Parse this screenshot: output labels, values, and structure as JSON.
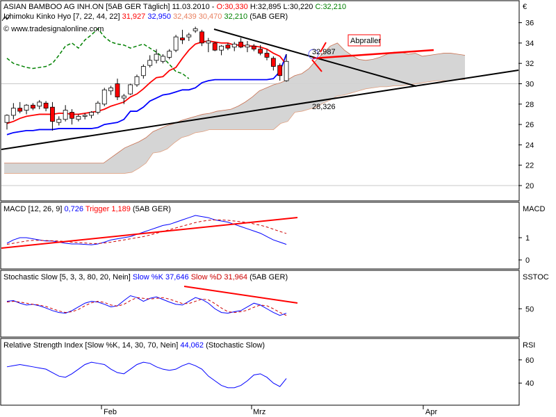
{
  "header": {
    "title_line": "ASIAN BAMBOO AG  INH.ON [5AB GER  Täglich] 11.03.2010",
    "open": "O:30,330",
    "high": "H:32,895",
    "low": "L:30,220",
    "close": "C:32,210",
    "ichimoku_label": "Ichimoku Kinko Hyo [7, 22, 44, 22]",
    "ichi_v1": "31,927",
    "ichi_v2": "32,950",
    "ichi_v3": "32,439",
    "ichi_v4": "30,470",
    "ichi_v5": "32,210",
    "ichi_suffix": "(5AB GER)",
    "copyright": "© www.tradesignalonline.com",
    "currency": "€"
  },
  "panels": {
    "macd": {
      "label": "MACD [12, 26, 9]",
      "value": "0,726",
      "trigger_label": "Trigger",
      "trigger_value": "1,189",
      "suffix": "(5AB GER)",
      "side_label": "MACD"
    },
    "stoch": {
      "label": "Stochastic Slow [5, 3, 3, 80, 20, Nein]",
      "k_label": "Slow %K",
      "k_value": "37,646",
      "d_label": "Slow %D",
      "d_value": "31,964",
      "suffix": "(5AB GER)",
      "side_label": "SSTOC"
    },
    "rsi": {
      "label": "Relative Strength Index [Slow %K, 14, 30, 70, Nein]",
      "value": "44,062",
      "suffix": "(Stochastic Slow)",
      "side_label": "RSI"
    }
  },
  "annotations": {
    "abpraller": "Abpraller",
    "resistance_value": "32,987",
    "support_value": "28,326"
  },
  "x_axis_labels": [
    "Feb",
    "Mrz",
    "Apr"
  ],
  "colors": {
    "tenkan": "#ff0000",
    "kijun": "#0000ff",
    "chikou": "#008000",
    "cloud": "#d3d3d3",
    "bull_candle": "#ffffff",
    "bear_candle": "#ff0000",
    "trendline": "#000000",
    "annotation": "#ff0000"
  },
  "chart_data": {
    "type": "candlestick",
    "price_axis": {
      "ylim": [
        19.2,
        37.6
      ],
      "ticks": [
        20,
        22,
        24,
        26,
        28,
        30,
        32,
        34,
        36
      ]
    },
    "macd_axis": {
      "ticks": [
        0,
        1
      ]
    },
    "stoch_axis": {
      "ticks": [
        50
      ]
    },
    "rsi_axis": {
      "ticks": [
        40,
        60
      ]
    },
    "candles": [
      {
        "o": 26.2,
        "h": 27.0,
        "l": 25.5,
        "c": 26.9
      },
      {
        "o": 26.9,
        "h": 28.1,
        "l": 26.5,
        "c": 27.6
      },
      {
        "o": 27.6,
        "h": 28.2,
        "l": 27.1,
        "c": 27.3
      },
      {
        "o": 27.4,
        "h": 28.0,
        "l": 27.0,
        "c": 27.9
      },
      {
        "o": 27.9,
        "h": 28.1,
        "l": 27.4,
        "c": 27.6
      },
      {
        "o": 27.8,
        "h": 28.4,
        "l": 27.5,
        "c": 28.2
      },
      {
        "o": 28.1,
        "h": 28.3,
        "l": 27.3,
        "c": 27.6
      },
      {
        "o": 27.7,
        "h": 28.2,
        "l": 25.4,
        "c": 26.3
      },
      {
        "o": 26.2,
        "h": 26.8,
        "l": 25.9,
        "c": 26.5
      },
      {
        "o": 26.5,
        "h": 27.9,
        "l": 26.3,
        "c": 27.4
      },
      {
        "o": 27.2,
        "h": 27.5,
        "l": 26.0,
        "c": 26.6
      },
      {
        "o": 26.5,
        "h": 27.0,
        "l": 26.3,
        "c": 26.8
      },
      {
        "o": 26.8,
        "h": 27.1,
        "l": 26.5,
        "c": 26.9
      },
      {
        "o": 26.9,
        "h": 27.3,
        "l": 26.6,
        "c": 27.2
      },
      {
        "o": 27.2,
        "h": 28.3,
        "l": 27.0,
        "c": 28.1
      },
      {
        "o": 28.0,
        "h": 29.6,
        "l": 27.8,
        "c": 29.4
      },
      {
        "o": 29.3,
        "h": 29.8,
        "l": 28.9,
        "c": 29.6
      },
      {
        "o": 30.0,
        "h": 30.5,
        "l": 28.4,
        "c": 28.7
      },
      {
        "o": 28.6,
        "h": 29.0,
        "l": 28.0,
        "c": 28.8
      },
      {
        "o": 29.0,
        "h": 30.0,
        "l": 28.9,
        "c": 29.9
      },
      {
        "o": 29.9,
        "h": 30.9,
        "l": 29.7,
        "c": 30.7
      },
      {
        "o": 30.8,
        "h": 31.9,
        "l": 30.5,
        "c": 31.7
      },
      {
        "o": 31.8,
        "h": 32.8,
        "l": 31.6,
        "c": 32.3
      },
      {
        "o": 32.3,
        "h": 33.4,
        "l": 32.0,
        "c": 32.9
      },
      {
        "o": 32.2,
        "h": 32.9,
        "l": 32.0,
        "c": 32.7
      },
      {
        "o": 32.6,
        "h": 33.4,
        "l": 32.4,
        "c": 33.2
      },
      {
        "o": 33.3,
        "h": 34.8,
        "l": 33.1,
        "c": 34.6
      },
      {
        "o": 34.5,
        "h": 35.3,
        "l": 33.9,
        "c": 34.3
      },
      {
        "o": 34.6,
        "h": 35.0,
        "l": 34.2,
        "c": 34.8
      },
      {
        "o": 35.2,
        "h": 35.6,
        "l": 35.0,
        "c": 35.4
      },
      {
        "o": 35.1,
        "h": 35.3,
        "l": 33.7,
        "c": 34.0
      },
      {
        "o": 34.0,
        "h": 34.5,
        "l": 33.1,
        "c": 34.2
      },
      {
        "o": 34.0,
        "h": 34.1,
        "l": 33.2,
        "c": 33.3
      },
      {
        "o": 33.3,
        "h": 33.8,
        "l": 32.8,
        "c": 33.7
      },
      {
        "o": 33.8,
        "h": 34.0,
        "l": 33.3,
        "c": 33.5
      },
      {
        "o": 33.6,
        "h": 34.1,
        "l": 33.2,
        "c": 33.9
      },
      {
        "o": 34.1,
        "h": 34.5,
        "l": 33.5,
        "c": 33.6
      },
      {
        "o": 33.6,
        "h": 34.2,
        "l": 33.1,
        "c": 33.8
      },
      {
        "o": 33.7,
        "h": 33.9,
        "l": 33.2,
        "c": 33.4
      },
      {
        "o": 33.4,
        "h": 33.8,
        "l": 32.8,
        "c": 33.0
      },
      {
        "o": 33.0,
        "h": 33.4,
        "l": 32.3,
        "c": 32.6
      },
      {
        "o": 32.5,
        "h": 32.7,
        "l": 31.3,
        "c": 31.7
      },
      {
        "o": 31.8,
        "h": 32.0,
        "l": 30.3,
        "c": 30.8
      },
      {
        "o": 30.3,
        "h": 32.9,
        "l": 30.2,
        "c": 32.2
      }
    ],
    "tenkan": [
      26.1,
      26.3,
      26.6,
      26.8,
      26.9,
      27.0,
      27.0,
      27.0,
      27.1,
      27.1,
      27.0,
      27.0,
      27.1,
      27.2,
      27.3,
      27.5,
      27.8,
      28.0,
      28.2,
      28.7,
      29.0,
      29.5,
      30.1,
      30.6,
      30.7,
      31.3,
      31.6,
      32.5,
      33.3,
      33.9,
      34.1,
      34.2,
      34.1,
      34.0,
      34.0,
      33.8,
      33.8,
      33.7,
      33.7,
      33.6,
      33.4,
      33.0,
      32.7,
      31.9
    ],
    "kijun": [
      25.0,
      25.2,
      25.3,
      25.4,
      25.4,
      25.5,
      25.5,
      25.5,
      25.6,
      25.6,
      25.6,
      25.6,
      25.6,
      25.6,
      25.7,
      26.0,
      26.1,
      26.2,
      26.5,
      27.3,
      27.3,
      27.7,
      28.3,
      28.6,
      28.9,
      29.0,
      29.2,
      29.4,
      29.4,
      29.6,
      30.1,
      30.3,
      30.4,
      30.4,
      30.4,
      30.4,
      30.4,
      30.4,
      30.4,
      30.4,
      30.4,
      30.5,
      31.2,
      32.9
    ],
    "chikou": [
      32.5,
      32.0,
      31.8,
      31.6,
      31.5,
      31.6,
      31.7,
      32.0,
      32.8,
      33.7,
      34.0,
      33.5,
      34.3,
      34.8,
      35.4,
      34.6,
      34.1,
      33.9,
      33.8,
      33.5,
      33.7,
      33.9,
      33.5,
      33.1,
      32.6,
      31.9,
      31.2,
      31.0,
      30.5
    ],
    "cloud_upper": [
      22.2,
      22.2,
      22.2,
      22.2,
      22.2,
      22.2,
      22.2,
      22.2,
      22.2,
      22.2,
      22.2,
      22.2,
      22.2,
      22.2,
      22.2,
      22.7,
      23.2,
      23.7,
      24.0,
      24.3,
      24.7,
      25.3,
      25.6,
      25.9,
      26.1,
      26.4,
      26.6,
      26.8,
      27.0,
      27.1,
      27.3,
      27.4,
      27.5,
      27.8,
      28.2,
      28.7,
      29.3,
      29.6,
      29.9,
      30.1,
      30.4,
      30.8,
      31.0,
      31.5,
      32.3,
      33.0,
      33.7,
      34.0,
      33.3,
      32.8,
      32.4,
      32.3,
      32.4,
      32.6,
      32.9,
      33.1,
      33.1,
      32.9,
      33.0,
      32.7,
      32.8,
      32.9,
      33.0,
      33.0,
      32.9,
      32.8
    ],
    "cloud_lower": [
      21.2,
      21.2,
      21.2,
      21.2,
      21.2,
      21.2,
      21.2,
      21.2,
      21.2,
      21.2,
      21.2,
      21.2,
      21.2,
      21.2,
      21.2,
      21.2,
      21.2,
      21.2,
      21.3,
      21.7,
      22.2,
      23.2,
      23.3,
      23.6,
      24.2,
      24.7,
      24.9,
      25.2,
      25.3,
      25.5,
      25.5,
      25.5,
      25.5,
      25.5,
      25.5,
      25.5,
      25.5,
      25.5,
      25.5,
      26.1,
      26.3,
      27.2,
      27.3,
      27.5,
      27.7,
      28.1,
      28.4,
      28.8,
      28.9,
      29.1,
      29.3,
      29.5,
      29.6,
      29.7,
      29.7,
      29.8,
      29.8,
      29.9,
      30.0,
      30.1,
      30.2,
      30.3,
      30.3,
      30.3,
      30.4,
      30.4
    ],
    "macd": [
      0.75,
      0.9,
      1.0,
      1.0,
      0.95,
      0.9,
      0.85,
      0.85,
      0.8,
      0.75,
      0.72,
      0.72,
      0.7,
      0.68,
      0.72,
      0.8,
      0.9,
      0.95,
      1.0,
      1.05,
      1.15,
      1.25,
      1.35,
      1.45,
      1.55,
      1.6,
      1.7,
      1.8,
      1.9,
      2.0,
      1.95,
      1.9,
      1.8,
      1.75,
      1.7,
      1.6,
      1.5,
      1.4,
      1.3,
      1.2,
      1.05,
      0.9,
      0.8,
      0.7
    ],
    "macd_trigger": [
      0.7,
      0.75,
      0.8,
      0.85,
      0.88,
      0.88,
      0.87,
      0.86,
      0.85,
      0.83,
      0.8,
      0.78,
      0.76,
      0.74,
      0.74,
      0.76,
      0.8,
      0.85,
      0.9,
      0.95,
      1.0,
      1.05,
      1.12,
      1.2,
      1.28,
      1.36,
      1.44,
      1.52,
      1.6,
      1.68,
      1.74,
      1.78,
      1.8,
      1.8,
      1.78,
      1.75,
      1.72,
      1.68,
      1.62,
      1.56,
      1.48,
      1.38,
      1.28,
      1.19
    ],
    "stoch_k": [
      70,
      72,
      65,
      60,
      62,
      58,
      52,
      45,
      40,
      38,
      45,
      55,
      65,
      70,
      68,
      62,
      55,
      58,
      72,
      85,
      80,
      70,
      78,
      82,
      75,
      68,
      62,
      60,
      70,
      80,
      75,
      65,
      50,
      40,
      38,
      42,
      45,
      55,
      65,
      60,
      50,
      40,
      32,
      38
    ],
    "stoch_d": [
      68,
      70,
      68,
      65,
      62,
      60,
      56,
      50,
      44,
      40,
      42,
      48,
      58,
      66,
      70,
      67,
      60,
      57,
      62,
      72,
      80,
      78,
      76,
      78,
      80,
      76,
      70,
      64,
      64,
      70,
      76,
      74,
      64,
      52,
      42,
      40,
      42,
      46,
      54,
      60,
      58,
      50,
      40,
      32
    ],
    "rsi": [
      54,
      55,
      56,
      55,
      54,
      53,
      52,
      49,
      46,
      45,
      48,
      52,
      56,
      58,
      57,
      56,
      52,
      49,
      48,
      52,
      56,
      58,
      57,
      54,
      52,
      51,
      52,
      55,
      57,
      55,
      52,
      46,
      42,
      38,
      36,
      36,
      38,
      42,
      47,
      48,
      45,
      40,
      37,
      44
    ]
  }
}
